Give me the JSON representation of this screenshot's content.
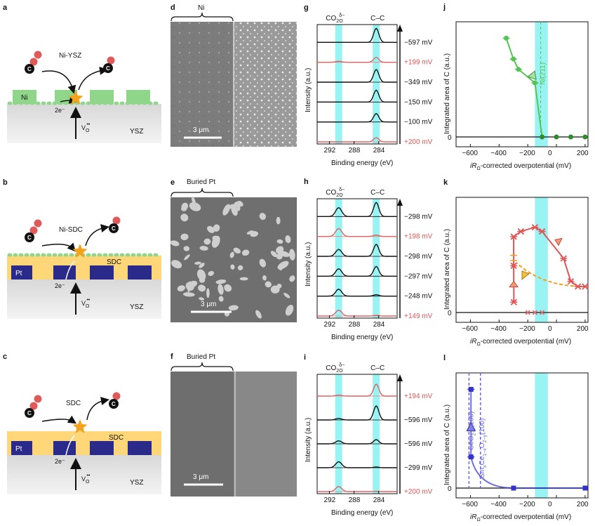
{
  "panels": {
    "a": {
      "label": "a",
      "title": "Ni-YSZ",
      "layer_top": "Ni",
      "substrate": "YSZ",
      "electrons": "2e⁻",
      "vacancy": "V",
      "vacancy_sub": "O",
      "vacancy_sup": "••"
    },
    "b": {
      "label": "b",
      "title": "Ni-SDC",
      "layer": "SDC",
      "buried": "Pt",
      "substrate": "YSZ",
      "electrons": "2e⁻",
      "vacancy": "V",
      "vacancy_sub": "O",
      "vacancy_sup": "••"
    },
    "c": {
      "label": "c",
      "title": "SDC",
      "layer": "SDC",
      "buried": "Pt",
      "substrate": "YSZ",
      "electrons": "2e⁻",
      "vacancy": "V",
      "vacancy_sub": "O",
      "vacancy_sup": "••"
    },
    "d": {
      "label": "d",
      "bracket": "Ni",
      "scale": "3 μm"
    },
    "e": {
      "label": "e",
      "bracket": "Buried Pt",
      "scale": "3 μm"
    },
    "f": {
      "label": "f",
      "bracket": "Buried Pt",
      "scale": "3 μm"
    },
    "g": {
      "label": "g",
      "peak1": "CO",
      "peak1_sub": "2",
      "peak1_sup": "δ−",
      "peak1_sub2": "O",
      "peak2": "C–C",
      "voltages": [
        "−597 mV",
        "+199 mV",
        "−349 mV",
        "−150 mV",
        "−100 mV",
        "+200 mV"
      ],
      "voltage_red": [
        false,
        true,
        false,
        false,
        false,
        true
      ],
      "xticks": [
        "292",
        "288",
        "284"
      ],
      "xlabel": "Binding energy (eV)",
      "ylabel": "Intensity (a.u.)"
    },
    "h": {
      "label": "h",
      "peak1": "CO",
      "peak1_sub": "2",
      "peak1_sup": "δ−",
      "peak1_sub2": "O",
      "peak2": "C–C",
      "voltages": [
        "−298 mV",
        "+198 mV",
        "−298 mV",
        "−297 mV",
        "−248 mV",
        "+149 mV"
      ],
      "voltage_red": [
        false,
        true,
        false,
        false,
        false,
        true
      ],
      "xticks": [
        "292",
        "288",
        "284"
      ],
      "xlabel": "Binding energy (eV)",
      "ylabel": "Intensity (a.u.)"
    },
    "i": {
      "label": "i",
      "peak1": "CO",
      "peak1_sub": "2",
      "peak1_sup": "δ−",
      "peak1_sub2": "O",
      "peak2": "C–C",
      "voltages": [
        "+194 mV",
        "−596 mV",
        "−596 mV",
        "−299 mV",
        "+200 mV"
      ],
      "voltage_red": [
        true,
        false,
        false,
        false,
        true
      ],
      "xticks": [
        "292",
        "288",
        "284"
      ],
      "xlabel": "Binding energy (eV)",
      "ylabel": "Intensity (a.u.)"
    },
    "j": {
      "label": "j",
      "annotation": "Ni(211)",
      "ylabel": "Integrated area of C (a.u.)",
      "xlabel_pre": "iR",
      "xlabel_sub": "Ω",
      "xlabel_post": "-corrected overpotential (mV)",
      "xticks": [
        "−600",
        "−400",
        "−200",
        "0",
        "200"
      ],
      "yzero": "0"
    },
    "k": {
      "label": "k",
      "ylabel": "Integrated area of C (a.u.)",
      "xlabel_pre": "iR",
      "xlabel_sub": "Ω",
      "xlabel_post": "-corrected overpotential (mV)",
      "xticks": [
        "−600",
        "−400",
        "−200",
        "0",
        "200"
      ],
      "yzero": "0"
    },
    "l": {
      "label": "l",
      "annotation1": "CeO",
      "annotation1_sub": "2−x",
      "annotation1_post": "(100)",
      "annotation2": "Sm",
      "annotation2_sub": "x",
      "annotation2_mid": "Ce",
      "annotation2_sub2": "1−x",
      "annotation2_mid2": "O",
      "annotation2_sub3": "2−y",
      "annotation2_post": "(100)",
      "ylabel": "Integrated area of C (a.u.)",
      "xlabel_pre": "iR",
      "xlabel_sub": "Ω",
      "xlabel_post": "-corrected overpotential (mV)",
      "xticks": [
        "−600",
        "−400",
        "−200",
        "0",
        "200"
      ],
      "yzero": "0"
    }
  },
  "colors": {
    "green": "#55c455",
    "red": "#e05555",
    "orange": "#f0a020",
    "blue": "#3333cc",
    "cyan": "#7ff0f0",
    "sdc": "#ffd678",
    "pt": "#2a2a8a",
    "ysz": "#e2e2e2",
    "ni": "#8fd68a"
  },
  "chart_data": [
    {
      "type": "scatter",
      "panel": "j",
      "xlabel": "iRΩ-corrected overpotential (mV)",
      "ylabel": "Integrated area of C (a.u.)",
      "xlim": [
        -700,
        220
      ],
      "series": [
        {
          "name": "Ni-YSZ",
          "x": [
            -350,
            -300,
            -265,
            -150,
            -100,
            0,
            100,
            200
          ],
          "y": [
            0.95,
            0.75,
            0.65,
            0.52,
            0,
            0,
            0,
            0
          ]
        }
      ]
    },
    {
      "type": "scatter",
      "panel": "k",
      "xlabel": "iRΩ-corrected overpotential (mV)",
      "ylabel": "Integrated area of C (a.u.)",
      "xlim": [
        -700,
        220
      ],
      "series": [
        {
          "name": "Ni-SDC",
          "x": [
            -297,
            -298,
            -298,
            -248,
            -150,
            -100,
            50,
            100,
            150,
            200,
            -200,
            -150,
            -100
          ],
          "y": [
            0.1,
            0.45,
            0.73,
            0.78,
            0.82,
            0.78,
            0.52,
            0.3,
            0.25,
            0.25,
            0,
            0,
            0
          ]
        }
      ]
    },
    {
      "type": "scatter",
      "panel": "l",
      "xlabel": "iRΩ-corrected overpotential (mV)",
      "ylabel": "Integrated area of C (a.u.)",
      "xlim": [
        -700,
        220
      ],
      "series": [
        {
          "name": "SDC",
          "x": [
            -596,
            -596,
            -299,
            200
          ],
          "y": [
            0.95,
            0.3,
            0,
            0
          ]
        }
      ]
    }
  ]
}
